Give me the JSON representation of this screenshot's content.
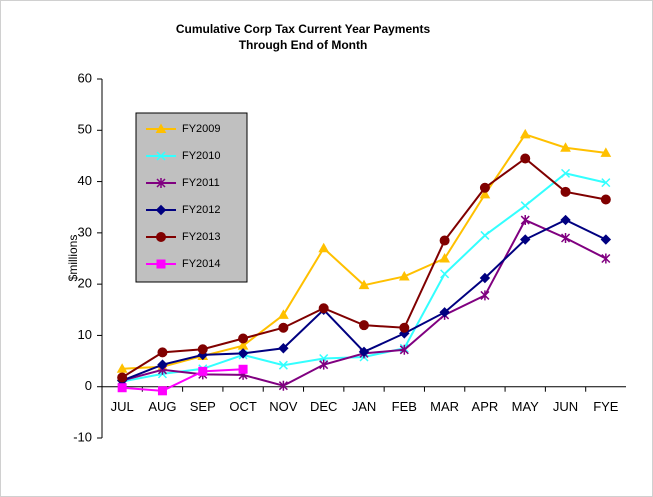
{
  "chart_data": {
    "type": "line",
    "title": [
      "Cumulative Corp Tax Current Year Payments",
      "Through End of Month"
    ],
    "y_label": "$millions",
    "categories": [
      "JUL",
      "AUG",
      "SEP",
      "OCT",
      "NOV",
      "DEC",
      "JAN",
      "FEB",
      "MAR",
      "APR",
      "MAY",
      "JUN",
      "FYE"
    ],
    "ylim": [
      -10,
      60
    ],
    "yticks": [
      -10,
      0,
      10,
      20,
      30,
      40,
      50,
      60
    ],
    "series": [
      {
        "name": "FY2009",
        "color": "#ffc000",
        "marker": "triangle",
        "values": [
          3.5,
          3.9,
          6,
          8,
          14,
          27,
          19.8,
          21.5,
          25,
          37.5,
          49.2,
          46.6,
          45.6
        ]
      },
      {
        "name": "FY2010",
        "color": "#33ffff",
        "marker": "x",
        "values": [
          1,
          2.5,
          3.5,
          6.2,
          4.2,
          5.5,
          5.8,
          7.5,
          22,
          29.5,
          35.3,
          41.6,
          39.8
        ]
      },
      {
        "name": "FY2011",
        "color": "#800080",
        "marker": "star",
        "values": [
          1.2,
          3.3,
          2.4,
          2.3,
          0.2,
          4.3,
          6.5,
          7.2,
          14,
          17.8,
          32.5,
          29,
          25
        ]
      },
      {
        "name": "FY2012",
        "color": "#000080",
        "marker": "diamond",
        "values": [
          1.2,
          4.3,
          6.2,
          6.5,
          7.5,
          15,
          6.8,
          10.4,
          14.5,
          21.2,
          28.7,
          32.5,
          28.7
        ]
      },
      {
        "name": "FY2013",
        "color": "#800000",
        "marker": "circle",
        "values": [
          1.8,
          6.7,
          7.3,
          9.4,
          11.5,
          15.3,
          12,
          11.5,
          28.5,
          38.8,
          44.5,
          38,
          36.5
        ]
      },
      {
        "name": "FY2014",
        "color": "#ff00ff",
        "marker": "square",
        "values": [
          -0.2,
          -0.8,
          3,
          3.4,
          null,
          null,
          null,
          null,
          null,
          null,
          null,
          null,
          null
        ]
      }
    ]
  }
}
